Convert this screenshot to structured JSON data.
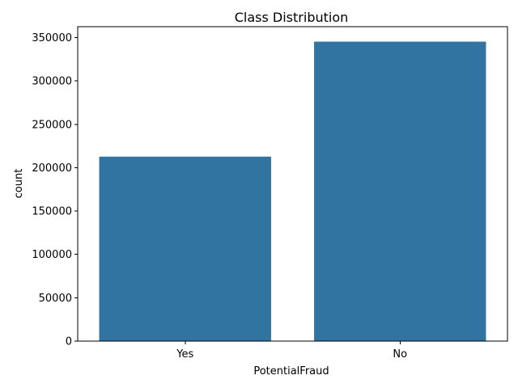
{
  "chart_data": {
    "type": "bar",
    "title": "Class Distribution",
    "xlabel": "PotentialFraud",
    "ylabel": "count",
    "categories": [
      "Yes",
      "No"
    ],
    "values": [
      212796,
      345415
    ],
    "ylim": [
      0,
      362686
    ],
    "yticks": [
      0,
      50000,
      100000,
      150000,
      200000,
      250000,
      300000,
      350000
    ],
    "grid": false,
    "legend": "none",
    "bar_color": "#3274a1"
  }
}
